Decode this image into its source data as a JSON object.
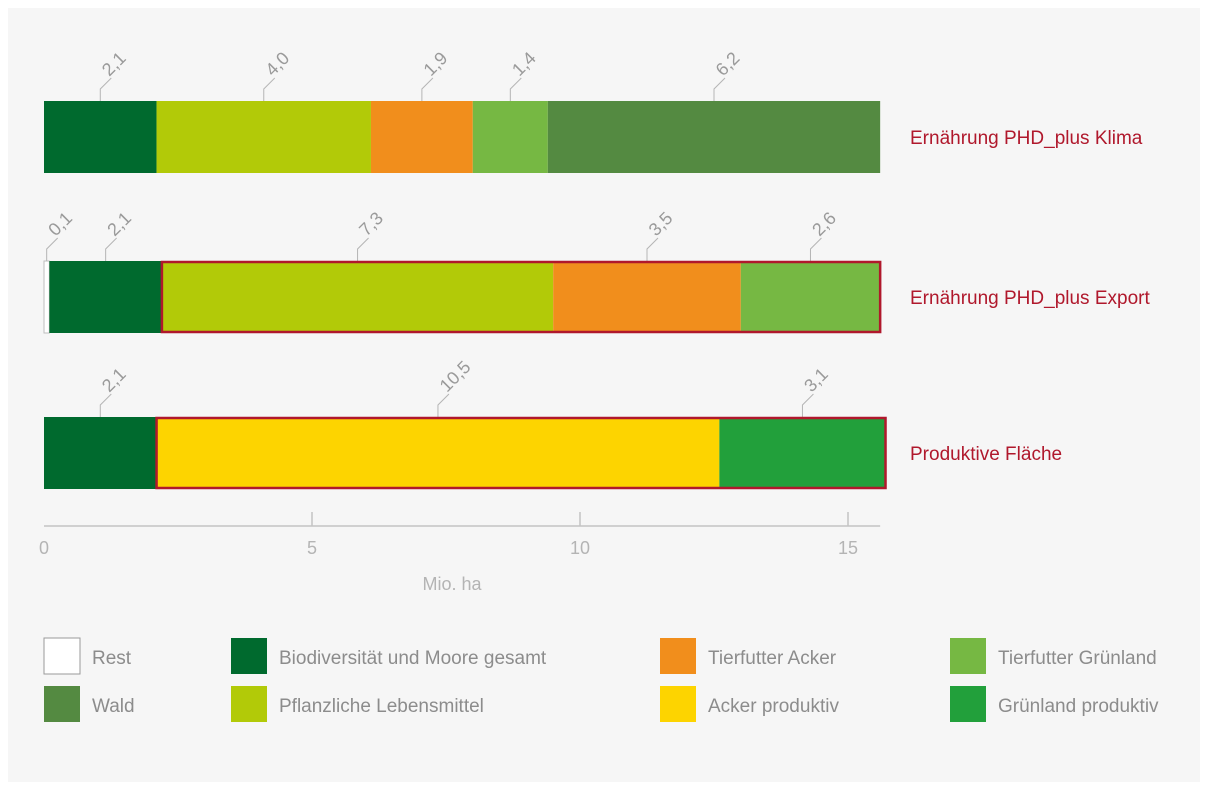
{
  "chart_data": {
    "type": "bar",
    "orientation": "horizontal",
    "stacked": true,
    "xlabel": "Mio. ha",
    "xlim": [
      0,
      15.6
    ],
    "xticks": [
      0,
      5,
      10,
      15
    ],
    "xtick_labels": [
      "0",
      "5",
      "10",
      "15"
    ],
    "legend_position": "bottom",
    "rows": [
      {
        "label": "Ernährung PHD_plus Klima",
        "highlight_range": null,
        "segments": [
          {
            "category": "Biodiversität und Moore gesamt",
            "value": 2.1,
            "label": "2,1"
          },
          {
            "category": "Pflanzliche Lebensmittel",
            "value": 4.0,
            "label": "4,0"
          },
          {
            "category": "Tierfutter Acker",
            "value": 1.9,
            "label": "1,9"
          },
          {
            "category": "Tierfutter Grünland",
            "value": 1.4,
            "label": "1,4"
          },
          {
            "category": "Wald",
            "value": 6.2,
            "label": "6,2"
          }
        ]
      },
      {
        "label": "Ernährung PHD_plus Export",
        "highlight_range": [
          2.2,
          15.6
        ],
        "segments": [
          {
            "category": "Rest",
            "value": 0.1,
            "label": "0,1"
          },
          {
            "category": "Biodiversität und Moore gesamt",
            "value": 2.1,
            "label": "2,1"
          },
          {
            "category": "Pflanzliche Lebensmittel",
            "value": 7.3,
            "label": "7,3"
          },
          {
            "category": "Tierfutter Acker",
            "value": 3.5,
            "label": "3,5"
          },
          {
            "category": "Tierfutter Grünland",
            "value": 2.6,
            "label": "2,6"
          }
        ]
      },
      {
        "label": "Produktive Fläche",
        "highlight_range": [
          2.1,
          15.7
        ],
        "segments": [
          {
            "category": "Biodiversität und Moore gesamt",
            "value": 2.1,
            "label": "2,1"
          },
          {
            "category": "Acker produktiv",
            "value": 10.5,
            "label": "10,5"
          },
          {
            "category": "Grünland produktiv",
            "value": 3.1,
            "label": "3,1"
          }
        ]
      }
    ],
    "legend": [
      {
        "name": "Rest",
        "color": "#ffffff"
      },
      {
        "name": "Biodiversität und Moore gesamt",
        "color": "#006a2e"
      },
      {
        "name": "Tierfutter Acker",
        "color": "#f18e1c"
      },
      {
        "name": "Tierfutter Grünland",
        "color": "#76b843"
      },
      {
        "name": "Wald",
        "color": "#548a41"
      },
      {
        "name": "Pflanzliche Lebensmittel",
        "color": "#b2ca08"
      },
      {
        "name": "Acker produktiv",
        "color": "#fdd400"
      },
      {
        "name": "Grünland produktiv",
        "color": "#22a03b"
      }
    ],
    "highlight_color": "#b0182c",
    "label_color": "#b0182c"
  }
}
